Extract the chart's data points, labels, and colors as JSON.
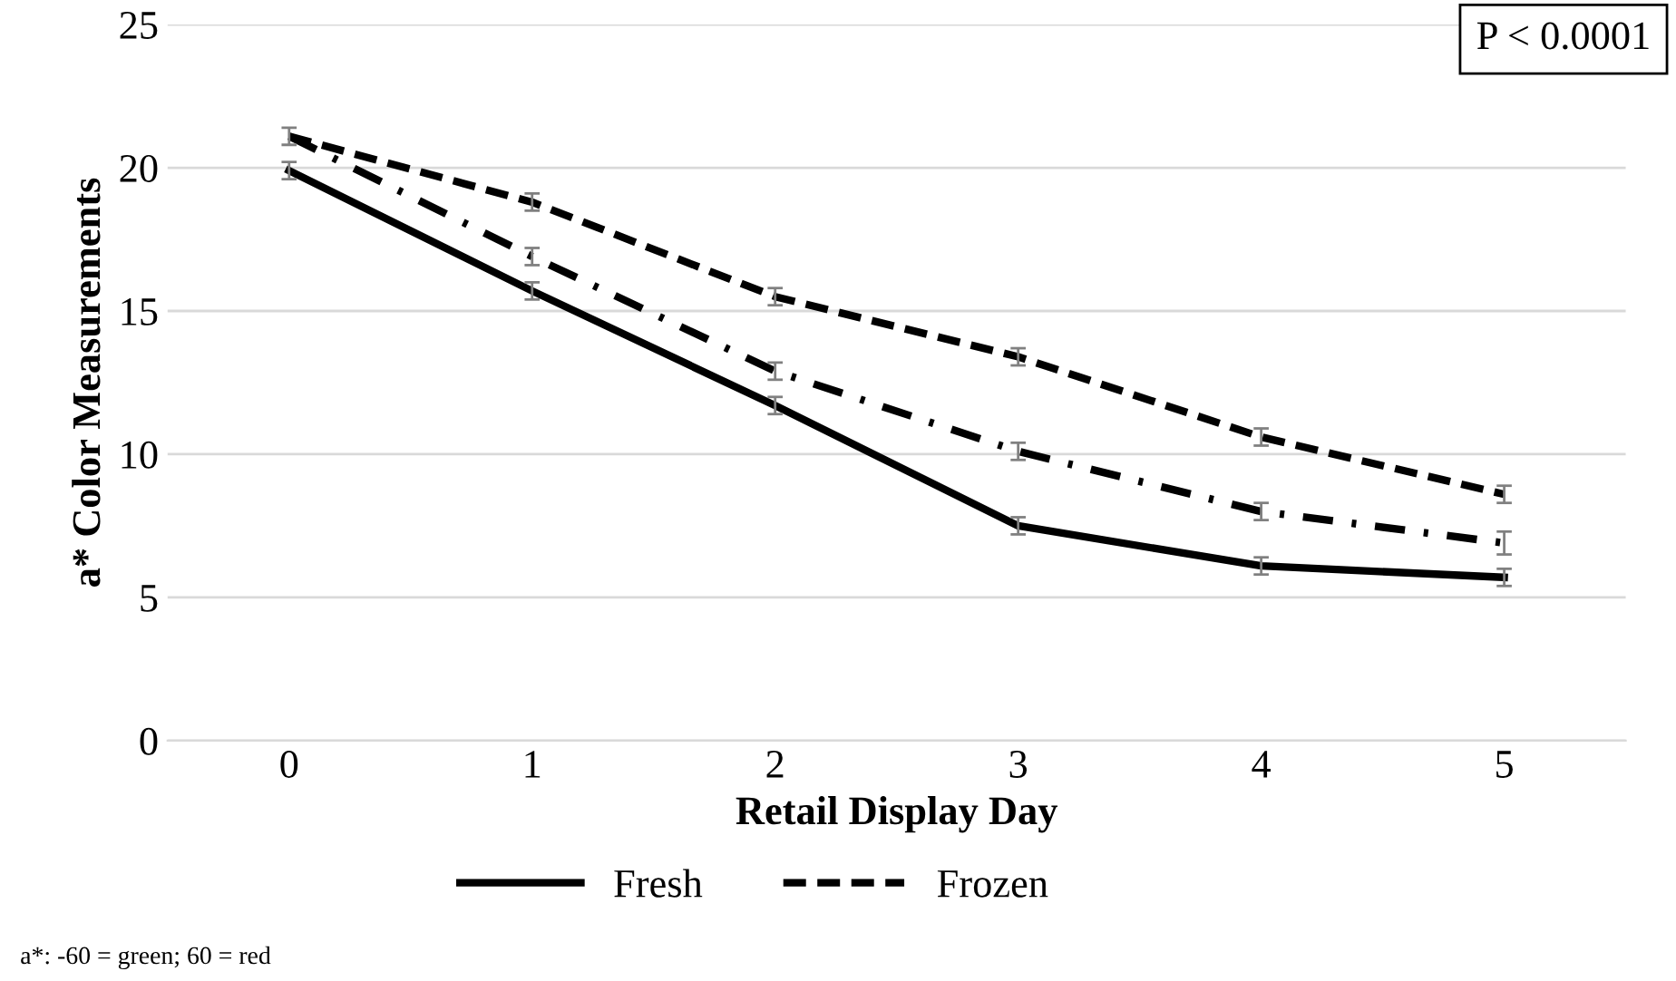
{
  "chart_data": {
    "type": "line",
    "xlabel": "Retail Display Day",
    "ylabel": "a* Color Measurements",
    "categories": [
      "0",
      "1",
      "2",
      "3",
      "4",
      "5"
    ],
    "series": [
      {
        "name": "Fresh",
        "color": "#000000",
        "line_style": "solid",
        "values": [
          19.9,
          15.7,
          11.7,
          7.5,
          6.1,
          5.7
        ],
        "errors": [
          0.3,
          0.3,
          0.3,
          0.3,
          0.3,
          0.3
        ]
      },
      {
        "name": "Frozen",
        "color": "#000000",
        "line_style": "dashed",
        "values": [
          21.1,
          18.8,
          15.5,
          13.4,
          10.6,
          8.6
        ],
        "errors": [
          0.3,
          0.3,
          0.3,
          0.3,
          0.3,
          0.3
        ]
      },
      {
        "color": "#000000",
        "line_style": "dashdot",
        "values": [
          21.1,
          16.9,
          12.9,
          10.1,
          8.0,
          6.9
        ],
        "errors": [
          null,
          0.3,
          0.3,
          0.3,
          0.3,
          0.4
        ]
      }
    ],
    "ylim": [
      0,
      25
    ],
    "yticks": [
      0,
      5,
      10,
      15,
      20,
      25
    ],
    "grid": "y",
    "legend": "bottom",
    "marker": "none",
    "annotations": [
      "P < 0.0001",
      "a*: -60 = green; 60 = red"
    ]
  }
}
